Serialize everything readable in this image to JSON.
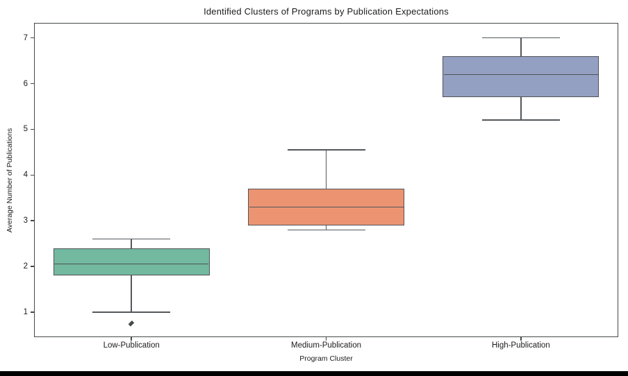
{
  "title": "Identified Clusters of Programs by Publication Expectations",
  "chart_data": {
    "type": "box",
    "title": "Identified Clusters of Programs by Publication Expectations",
    "xlabel": "Program Cluster",
    "ylabel": "Average Number of Publications",
    "categories": [
      "Low-Publication",
      "Medium-Publication",
      "High-Publication"
    ],
    "series": [
      {
        "name": "Low-Publication",
        "whisker_low": 1.0,
        "q1": 1.8,
        "median": 2.05,
        "q3": 2.4,
        "whisker_high": 2.6,
        "outliers": [
          0.75
        ],
        "fill_color": "#72b9a0"
      },
      {
        "name": "Medium-Publication",
        "whisker_low": 2.8,
        "q1": 2.9,
        "median": 3.3,
        "q3": 3.7,
        "whisker_high": 4.55,
        "outliers": [],
        "fill_color": "#ec9472"
      },
      {
        "name": "High-Publication",
        "whisker_low": 5.2,
        "q1": 5.7,
        "median": 6.2,
        "q3": 6.6,
        "whisker_high": 7.0,
        "outliers": [],
        "fill_color": "#93a0c2"
      }
    ],
    "yticks": [
      1,
      2,
      3,
      4,
      5,
      6,
      7
    ],
    "ylim": [
      0.45,
      7.33
    ],
    "grid": false,
    "legend_position": "none",
    "line_color": "#4f5355"
  }
}
